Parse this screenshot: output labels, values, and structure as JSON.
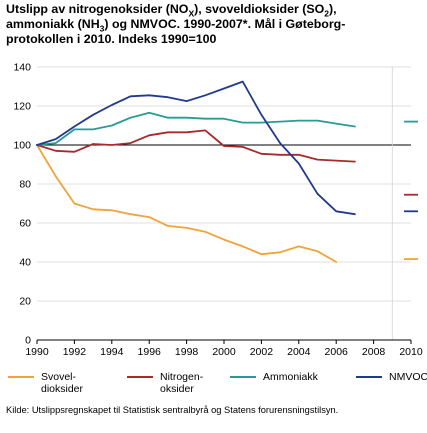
{
  "title_lines": [
    {
      "pre": "Utslipp av nitrogenoksider (NO",
      "sub": "X",
      "post": "), svoveldioksider (SO",
      "sub2": "2",
      "post2": "),"
    },
    {
      "pre": "ammoniakk (NH",
      "sub": "3",
      "post": ") og NMVOC. 1990-2007*. Mål i Gøteborg-"
    },
    {
      "pre": "protokollen i 2010. Indeks 1990=100"
    }
  ],
  "source": "Kilde: Utslippsregnskapet til Statistisk sentralbyrå og Statens forurensningstilsyn.",
  "chart_data": {
    "type": "line",
    "x": [
      1990,
      1991,
      1992,
      1993,
      1994,
      1995,
      1996,
      1997,
      1998,
      1999,
      2000,
      2001,
      2002,
      2003,
      2004,
      2005,
      2006,
      2007
    ],
    "x_ticks": [
      1990,
      1992,
      1994,
      1996,
      1998,
      2000,
      2002,
      2004,
      2006,
      2008,
      2010
    ],
    "y_ticks": [
      0,
      20,
      40,
      60,
      80,
      100,
      120,
      140
    ],
    "ylim": [
      0,
      140
    ],
    "xlim": [
      1990,
      2010
    ],
    "reference_line": 100,
    "series": [
      {
        "name": "Svovel-\ndioksider",
        "color": "#f0a33a",
        "values": [
          100,
          84,
          70,
          67,
          66.5,
          64.5,
          63,
          58.5,
          57.5,
          55.5,
          51.5,
          48,
          44,
          45,
          48,
          45.5,
          40,
          null
        ],
        "target_2010": 41.5
      },
      {
        "name": "Nitrogen-\noksider",
        "color": "#a62a2a",
        "values": [
          100,
          97,
          96.5,
          100.5,
          100,
          101,
          105,
          106.5,
          106.5,
          107.5,
          99.5,
          99,
          95.5,
          95,
          95,
          92.5,
          92,
          91.5
        ],
        "target_2010": 74.5
      },
      {
        "name": "Ammoniakk",
        "color": "#2a9a95",
        "values": [
          100,
          101,
          108,
          108,
          110,
          114,
          116.5,
          114,
          114,
          113.5,
          113.5,
          111.5,
          111.5,
          112,
          112.5,
          112.5,
          111,
          109.5
        ],
        "target_2010": 112
      },
      {
        "name": "NMVOC",
        "color": "#223a8c",
        "values": [
          100,
          103,
          109.5,
          115.5,
          120.5,
          125,
          125.5,
          124.5,
          122.5,
          125.5,
          129,
          132.5,
          115.5,
          101,
          90.5,
          75,
          66,
          64.5
        ],
        "target_2010": 66
      }
    ]
  }
}
